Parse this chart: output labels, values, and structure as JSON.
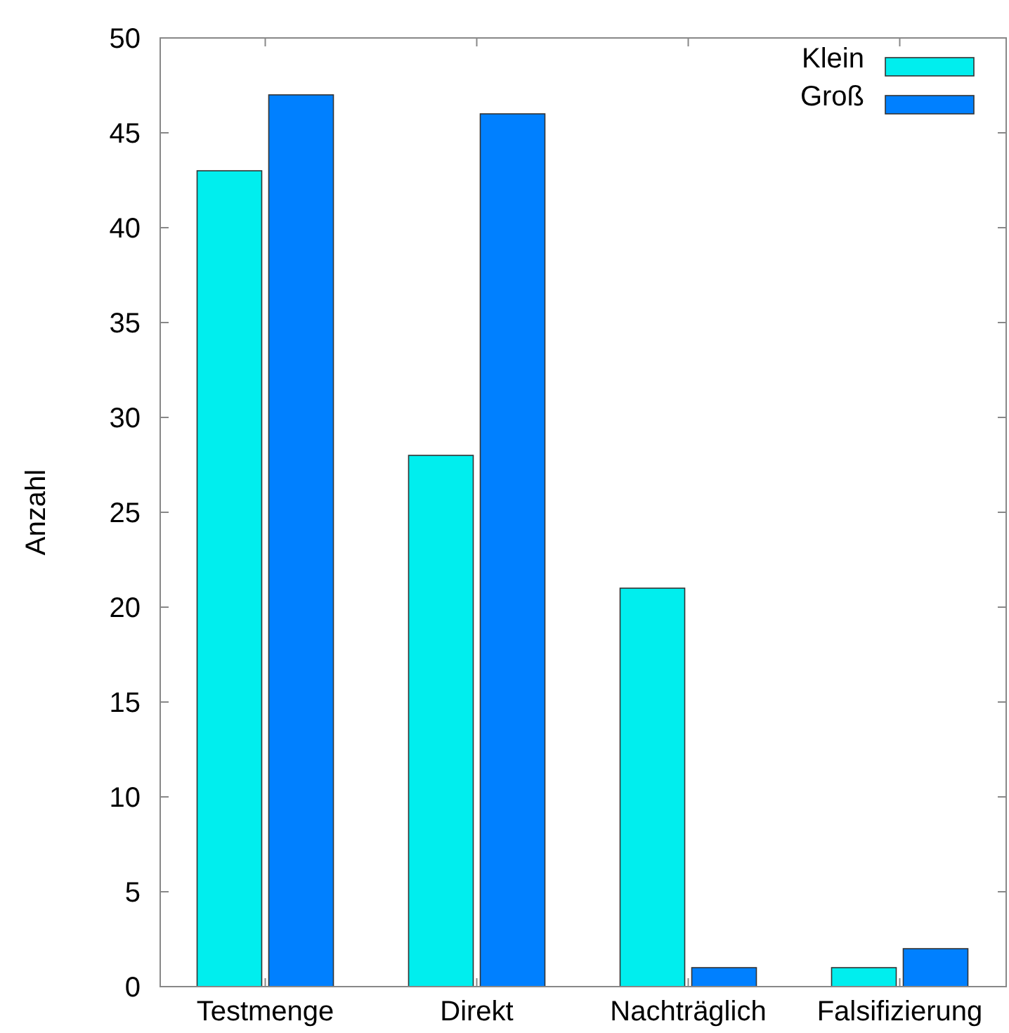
{
  "chart_data": {
    "type": "bar",
    "ylabel": "Anzahl",
    "categories": [
      "Testmenge",
      "Direkt",
      "Nachträglich",
      "Falsifizierung"
    ],
    "series": [
      {
        "name": "Klein",
        "color": "#00eeee",
        "values": [
          43,
          28,
          21,
          1
        ]
      },
      {
        "name": "Groß",
        "color": "#0080ff",
        "values": [
          47,
          46,
          1,
          2
        ]
      }
    ],
    "ylim": [
      0,
      50
    ],
    "yticks": [
      0,
      5,
      10,
      15,
      20,
      25,
      30,
      35,
      40,
      45,
      50
    ],
    "grid": false,
    "legend": "top right"
  }
}
